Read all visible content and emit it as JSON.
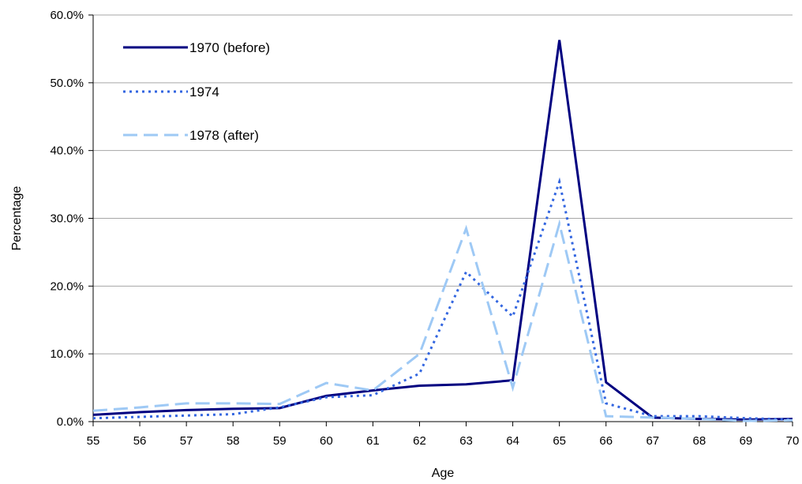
{
  "chart_data": {
    "type": "line",
    "title": "",
    "xlabel": "Age",
    "ylabel": "Percentage",
    "x": [
      55,
      56,
      57,
      58,
      59,
      60,
      61,
      62,
      63,
      64,
      65,
      66,
      67,
      68,
      69,
      70
    ],
    "xlim": [
      55,
      70
    ],
    "ylim": [
      0,
      60
    ],
    "y_ticks": [
      0,
      10,
      20,
      30,
      40,
      50,
      60
    ],
    "y_tick_labels": [
      "0.0%",
      "10.0%",
      "20.0%",
      "30.0%",
      "40.0%",
      "50.0%",
      "60.0%"
    ],
    "x_tick_labels": [
      "55",
      "56",
      "57",
      "58",
      "59",
      "60",
      "61",
      "62",
      "63",
      "64",
      "65",
      "66",
      "67",
      "68",
      "69",
      "70"
    ],
    "grid": "horizontal",
    "legend_position": "top-left",
    "series": [
      {
        "name": "1970 (before)",
        "style": "solid",
        "color": "#000080",
        "values": [
          1.0,
          1.4,
          1.7,
          1.9,
          2.0,
          3.8,
          4.6,
          5.3,
          5.5,
          6.1,
          56.3,
          5.8,
          0.6,
          0.4,
          0.3,
          0.4
        ]
      },
      {
        "name": "1974",
        "style": "dotted",
        "color": "#3366e0",
        "values": [
          0.5,
          0.7,
          0.9,
          1.1,
          2.1,
          3.6,
          3.9,
          7.1,
          22.1,
          15.5,
          35.4,
          2.7,
          0.8,
          0.8,
          0.5,
          0.3
        ]
      },
      {
        "name": "1978 (after)",
        "style": "dashed",
        "color": "#9ec9f5",
        "values": [
          1.6,
          2.1,
          2.7,
          2.7,
          2.6,
          5.7,
          4.6,
          10.0,
          28.5,
          5.0,
          29.2,
          0.8,
          0.6,
          0.4,
          0.1,
          0.2
        ]
      }
    ]
  }
}
